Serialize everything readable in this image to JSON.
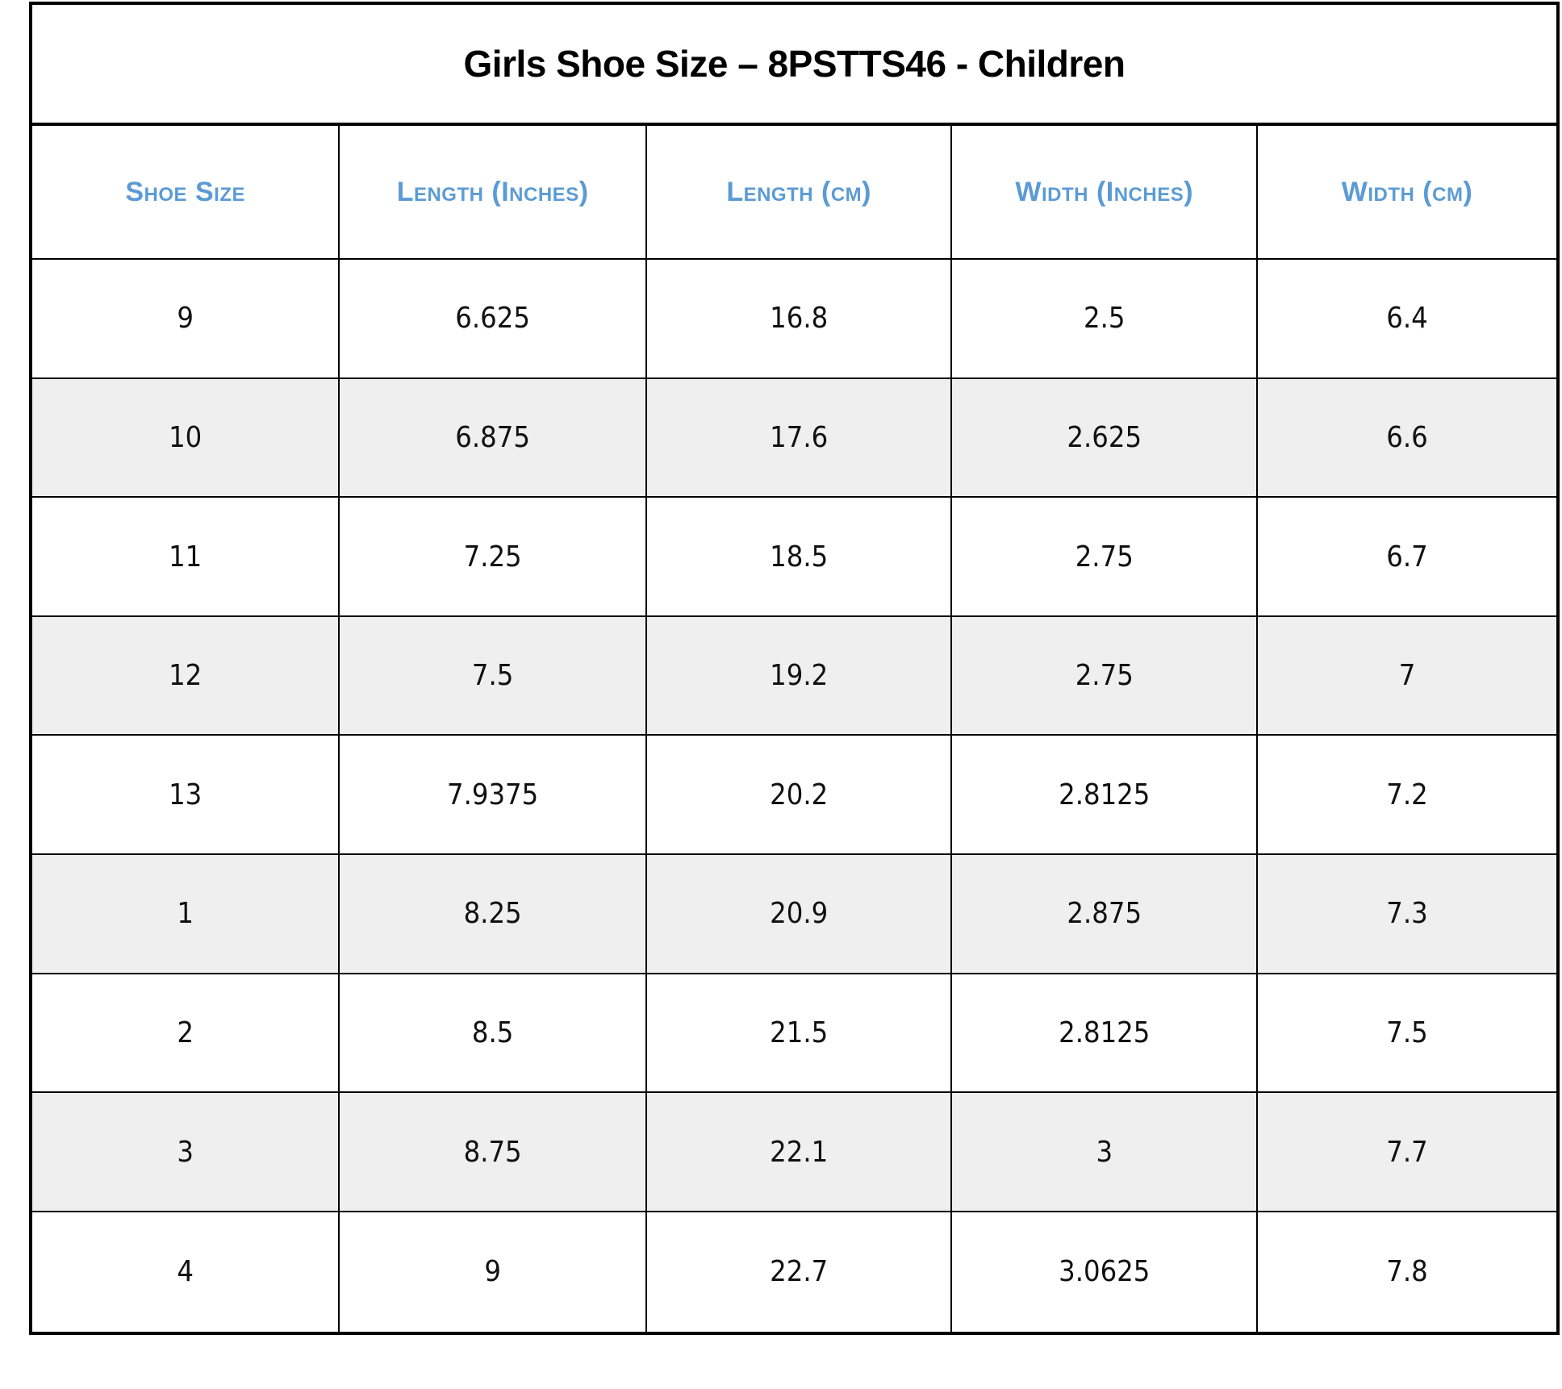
{
  "table": {
    "title": "Girls Shoe Size – 8PSTTS46 - Children",
    "columns": [
      "Shoe Size",
      "Length (Inches)",
      "Length (cm)",
      "Width (Inches)",
      "Width (cm)"
    ],
    "rows": [
      [
        "9",
        "6.625",
        "16.8",
        "2.5",
        "6.4"
      ],
      [
        "10",
        "6.875",
        "17.6",
        "2.625",
        "6.6"
      ],
      [
        "11",
        "7.25",
        "18.5",
        "2.75",
        "6.7"
      ],
      [
        "12",
        "7.5",
        "19.2",
        "2.75",
        "7"
      ],
      [
        "13",
        "7.9375",
        "20.2",
        "2.8125",
        "7.2"
      ],
      [
        "1",
        "8.25",
        "20.9",
        "2.875",
        "7.3"
      ],
      [
        "2",
        "8.5",
        "21.5",
        "2.8125",
        "7.5"
      ],
      [
        "3",
        "8.75",
        "22.1",
        "3",
        "7.7"
      ],
      [
        "4",
        "9",
        "22.7",
        "3.0625",
        "7.8"
      ]
    ],
    "colors": {
      "header_text": "#5B9BD5",
      "alt_row_bg": "#EFEFEF",
      "border": "#000000",
      "title_text": "#000000"
    }
  }
}
